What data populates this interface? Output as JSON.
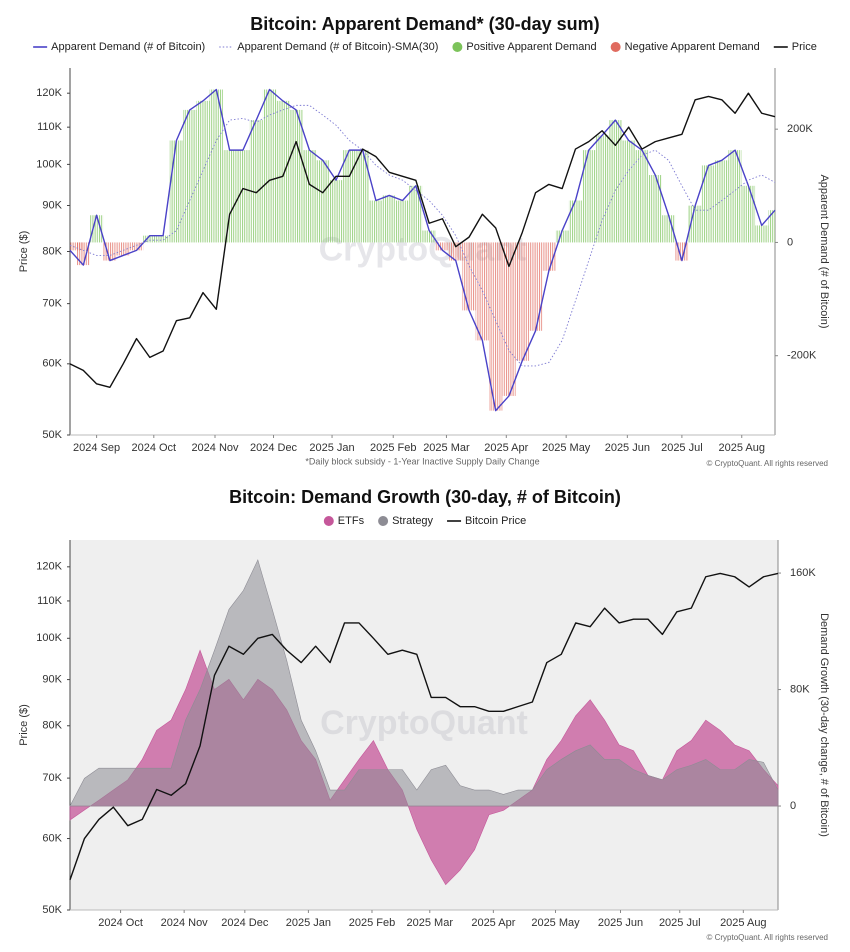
{
  "chart_data": [
    {
      "type": "line",
      "title": "Bitcoin: Apparent Demand* (30-day sum)",
      "footnote": "*Daily block subsidy - 1-Year Inactive Supply Daily Change",
      "watermark": "CryptoQuant",
      "copyright": "© CryptoQuant. All rights reserved",
      "ylabel": "Price ($)",
      "y2label": "Apparent Demand (# of Bitcoin)",
      "log_scale": true,
      "ylim": [
        50000,
        128000
      ],
      "yticks": [
        {
          "value": 50000,
          "label": "50K"
        },
        {
          "value": 60000,
          "label": "60K"
        },
        {
          "value": 70000,
          "label": "70K"
        },
        {
          "value": 80000,
          "label": "80K"
        },
        {
          "value": 90000,
          "label": "90K"
        },
        {
          "value": 100000,
          "label": "100K"
        },
        {
          "value": 110000,
          "label": "110K"
        },
        {
          "value": 120000,
          "label": "120K"
        }
      ],
      "y2lim": [
        -340000,
        308000
      ],
      "y2ticks": [
        {
          "value": -200000,
          "label": "-200K"
        },
        0,
        {
          "value": 200000,
          "label": "200K"
        }
      ],
      "xticks": [
        {
          "value": 2.0,
          "label": "2024 Sep"
        },
        {
          "value": 6.3,
          "label": "2024 Oct"
        },
        {
          "value": 10.9,
          "label": "2024 Nov"
        },
        {
          "value": 15.3,
          "label": "2024 Dec"
        },
        {
          "value": 19.7,
          "label": "2025 Jan"
        },
        {
          "value": 24.3,
          "label": "2025 Feb"
        },
        {
          "value": 28.3,
          "label": "2025 Mar"
        },
        {
          "value": 32.8,
          "label": "2025 Apr"
        },
        {
          "value": 37.3,
          "label": "2025 May"
        },
        {
          "value": 41.9,
          "label": "2025 Jun"
        },
        {
          "value": 46.0,
          "label": "2025 Jul"
        },
        {
          "value": 50.5,
          "label": "2025 Aug"
        }
      ],
      "fills": [
        {
          "name": "Positive Apparent Demand",
          "color": "#7cc35a"
        },
        {
          "name": "Negative Apparent Demand",
          "color": "#e06b5f"
        }
      ],
      "series": [
        {
          "name": "Apparent Demand (# of Bitcoin)",
          "color": "#4a42c8",
          "axis": "y2",
          "style": "solid",
          "values": [
            -14000,
            -40000,
            48000,
            -32000,
            -23000,
            -14000,
            12000,
            12000,
            180000,
            234000,
            250000,
            270000,
            163000,
            163000,
            216000,
            270000,
            250000,
            234000,
            163000,
            145000,
            110000,
            163000,
            163000,
            74000,
            83000,
            74000,
            100000,
            21000,
            -14000,
            -32000,
            -120000,
            -173000,
            -297000,
            -271000,
            -209000,
            -156000,
            -50000,
            21000,
            74000,
            163000,
            189000,
            216000,
            180000,
            163000,
            119000,
            48000,
            -32000,
            65000,
            136000,
            145000,
            163000,
            100000,
            30000,
            57000
          ]
        },
        {
          "name": "Apparent Demand (# of Bitcoin)-SMA(30)",
          "color": "#7d7ad2",
          "axis": "y2",
          "style": "dotted",
          "values": [
            -5000,
            -14000,
            -23000,
            -23000,
            -14000,
            -5000,
            4000,
            4000,
            21000,
            74000,
            127000,
            180000,
            216000,
            219000,
            212000,
            225000,
            234000,
            242000,
            242000,
            225000,
            207000,
            180000,
            163000,
            136000,
            119000,
            110000,
            92000,
            74000,
            48000,
            12000,
            -41000,
            -85000,
            -138000,
            -191000,
            -218000,
            -218000,
            -212000,
            -173000,
            -103000,
            -32000,
            39000,
            92000,
            127000,
            154000,
            163000,
            145000,
            100000,
            57000,
            57000,
            74000,
            92000,
            110000,
            119000,
            106000
          ]
        },
        {
          "name": "Price",
          "color": "#111111",
          "axis": "y",
          "style": "solid",
          "values": [
            60000,
            59000,
            57000,
            56500,
            60000,
            64000,
            61000,
            62000,
            67000,
            67500,
            72000,
            69000,
            88000,
            94000,
            93000,
            96000,
            97000,
            106000,
            95000,
            93000,
            97000,
            97000,
            104000,
            102000,
            98000,
            97000,
            96000,
            86000,
            87000,
            81000,
            83000,
            88000,
            85000,
            77000,
            84000,
            93000,
            95000,
            94000,
            104000,
            106000,
            109000,
            105000,
            110000,
            104000,
            106000,
            107000,
            108000,
            118000,
            119000,
            118000,
            114000,
            120000,
            114000,
            113000
          ]
        }
      ]
    },
    {
      "type": "area",
      "title": "Bitcoin: Demand Growth (30-day, # of Bitcoin)",
      "watermark": "CryptoQuant",
      "copyright": "© CryptoQuant. All rights reserved",
      "ylabel": "Price ($)",
      "y2label": "Demand Growth (30-day change, # of Bitcoin)",
      "plot_background": "#efefef",
      "log_scale": true,
      "ylim": [
        50000,
        128500
      ],
      "yticks": [
        {
          "value": 50000,
          "label": "50K"
        },
        {
          "value": 60000,
          "label": "60K"
        },
        {
          "value": 70000,
          "label": "70K"
        },
        {
          "value": 80000,
          "label": "80K"
        },
        {
          "value": 90000,
          "label": "90K"
        },
        {
          "value": 100000,
          "label": "100K"
        },
        {
          "value": 110000,
          "label": "110K"
        },
        {
          "value": 120000,
          "label": "120K"
        }
      ],
      "y2lim": [
        -71400,
        182700
      ],
      "y2ticks": [
        0,
        {
          "value": 80000,
          "label": "80K"
        },
        {
          "value": 160000,
          "label": "160K"
        }
      ],
      "xticks": [
        {
          "value": 3.5,
          "label": "2024 Oct"
        },
        {
          "value": 7.9,
          "label": "2024 Nov"
        },
        {
          "value": 12.1,
          "label": "2024 Dec"
        },
        {
          "value": 16.5,
          "label": "2025 Jan"
        },
        {
          "value": 20.9,
          "label": "2025 Feb"
        },
        {
          "value": 24.9,
          "label": "2025 Mar"
        },
        {
          "value": 29.3,
          "label": "2025 Apr"
        },
        {
          "value": 33.6,
          "label": "2025 May"
        },
        {
          "value": 38.1,
          "label": "2025 Jun"
        },
        {
          "value": 42.2,
          "label": "2025 Jul"
        },
        {
          "value": 46.6,
          "label": "2025 Aug"
        }
      ],
      "series": [
        {
          "name": "ETFs",
          "color": "#c5579a",
          "axis": "y2",
          "style": "area",
          "values": [
            -9600,
            -2700,
            4000,
            11000,
            18000,
            32000,
            52000,
            59000,
            80000,
            107000,
            80000,
            87000,
            73000,
            87000,
            80000,
            66000,
            45000,
            32000,
            4000,
            18000,
            32000,
            45000,
            25000,
            11000,
            -16000,
            -37000,
            -54000,
            -44000,
            -30000,
            -6000,
            -3000,
            4000,
            11000,
            32000,
            45000,
            62000,
            73000,
            59000,
            42000,
            38000,
            21000,
            18000,
            38000,
            45000,
            59000,
            52000,
            42000,
            38000,
            25000,
            14000
          ]
        },
        {
          "name": "Strategy",
          "color": "#8d8c94",
          "axis": "y2",
          "style": "area",
          "values": [
            0,
            19000,
            26000,
            26000,
            26000,
            26000,
            26000,
            26000,
            59000,
            80000,
            107000,
            135000,
            148000,
            169000,
            135000,
            100000,
            59000,
            38000,
            11000,
            11000,
            25000,
            25000,
            25000,
            25000,
            11000,
            25000,
            28000,
            14000,
            11000,
            11000,
            8000,
            11000,
            11000,
            25000,
            32000,
            38000,
            42000,
            32000,
            32000,
            25000,
            21000,
            18000,
            25000,
            28000,
            32000,
            25000,
            25000,
            32000,
            30000,
            11000
          ]
        },
        {
          "name": "Bitcoin Price",
          "color": "#111111",
          "axis": "y",
          "style": "solid",
          "values": [
            54000,
            60000,
            63000,
            65000,
            62000,
            63000,
            68000,
            67000,
            69000,
            76000,
            91000,
            98000,
            96000,
            100000,
            101000,
            97000,
            94000,
            98000,
            94000,
            104000,
            104000,
            100000,
            96000,
            97000,
            96000,
            86000,
            86000,
            84000,
            84000,
            83000,
            83000,
            84000,
            85000,
            94000,
            96000,
            104000,
            103000,
            108000,
            104000,
            105000,
            105000,
            101000,
            107000,
            108000,
            117000,
            118000,
            117000,
            114000,
            117000,
            118000
          ]
        }
      ]
    }
  ]
}
